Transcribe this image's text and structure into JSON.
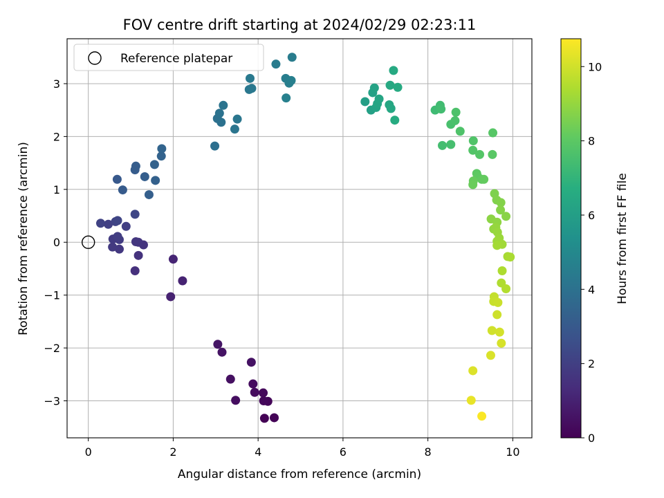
{
  "chart_data": {
    "type": "scatter",
    "title": "FOV centre drift starting at 2024/02/29 02:23:11",
    "xlabel": "Angular distance from reference (arcmin)",
    "ylabel": "Rotation from reference (arcmin)",
    "xlim": [
      -0.5,
      10.45
    ],
    "ylim": [
      -3.7,
      3.85
    ],
    "xticks": [
      0,
      2,
      4,
      6,
      8,
      10
    ],
    "yticks": [
      -3,
      -2,
      -1,
      0,
      1,
      2,
      3
    ],
    "xtick_labels": [
      "0",
      "2",
      "4",
      "6",
      "8",
      "10"
    ],
    "ytick_labels": [
      "−3",
      "−2",
      "−1",
      "0",
      "1",
      "2",
      "3"
    ],
    "grid": true,
    "legend": {
      "position": "top-left",
      "entries": [
        "Reference platepar"
      ]
    },
    "reference_point": {
      "x": 0,
      "y": 0
    },
    "colorbar": {
      "label": "Hours from first FF file",
      "colormap": "viridis",
      "range": [
        0,
        10.75
      ],
      "ticks": [
        0,
        2,
        4,
        6,
        8,
        10
      ],
      "tick_labels": [
        "0",
        "2",
        "4",
        "6",
        "8",
        "10"
      ]
    },
    "points": [
      {
        "x": 4.15,
        "y": -3.33,
        "h": 0.05
      },
      {
        "x": 4.38,
        "y": -3.32,
        "h": 0.1
      },
      {
        "x": 4.23,
        "y": -3.01,
        "h": 0.15
      },
      {
        "x": 4.13,
        "y": -3.0,
        "h": 0.2
      },
      {
        "x": 4.12,
        "y": -2.85,
        "h": 0.25
      },
      {
        "x": 3.92,
        "y": -2.84,
        "h": 0.3
      },
      {
        "x": 3.88,
        "y": -2.68,
        "h": 0.35
      },
      {
        "x": 3.47,
        "y": -2.99,
        "h": 0.4
      },
      {
        "x": 3.35,
        "y": -2.59,
        "h": 0.45
      },
      {
        "x": 3.84,
        "y": -2.27,
        "h": 0.5
      },
      {
        "x": 3.15,
        "y": -2.08,
        "h": 0.55
      },
      {
        "x": 3.05,
        "y": -1.93,
        "h": 0.6
      },
      {
        "x": 1.94,
        "y": -1.03,
        "h": 1.0
      },
      {
        "x": 2.22,
        "y": -0.73,
        "h": 1.05
      },
      {
        "x": 2.0,
        "y": -0.32,
        "h": 1.1
      },
      {
        "x": 1.1,
        "y": -0.54,
        "h": 1.5
      },
      {
        "x": 1.18,
        "y": -0.25,
        "h": 1.55
      },
      {
        "x": 1.3,
        "y": -0.05,
        "h": 1.6
      },
      {
        "x": 1.18,
        "y": 0.0,
        "h": 1.65
      },
      {
        "x": 1.12,
        "y": 0.01,
        "h": 1.7
      },
      {
        "x": 0.73,
        "y": -0.13,
        "h": 1.75
      },
      {
        "x": 0.57,
        "y": -0.09,
        "h": 1.8
      },
      {
        "x": 0.58,
        "y": 0.06,
        "h": 1.85
      },
      {
        "x": 0.73,
        "y": 0.05,
        "h": 1.9
      },
      {
        "x": 0.69,
        "y": 0.11,
        "h": 1.95
      },
      {
        "x": 0.89,
        "y": 0.3,
        "h": 2.0
      },
      {
        "x": 0.47,
        "y": 0.34,
        "h": 2.05
      },
      {
        "x": 0.29,
        "y": 0.36,
        "h": 2.1
      },
      {
        "x": 0.64,
        "y": 0.39,
        "h": 2.15
      },
      {
        "x": 0.69,
        "y": 0.41,
        "h": 2.2
      },
      {
        "x": 1.1,
        "y": 0.53,
        "h": 2.25
      },
      {
        "x": 0.68,
        "y": 1.19,
        "h": 3.0
      },
      {
        "x": 0.81,
        "y": 0.99,
        "h": 3.05
      },
      {
        "x": 1.1,
        "y": 1.37,
        "h": 3.1
      },
      {
        "x": 1.12,
        "y": 1.44,
        "h": 3.15
      },
      {
        "x": 1.33,
        "y": 1.24,
        "h": 3.2
      },
      {
        "x": 1.43,
        "y": 0.9,
        "h": 3.25
      },
      {
        "x": 1.58,
        "y": 1.17,
        "h": 3.3
      },
      {
        "x": 1.56,
        "y": 1.47,
        "h": 3.35
      },
      {
        "x": 1.72,
        "y": 1.63,
        "h": 3.4
      },
      {
        "x": 1.73,
        "y": 1.77,
        "h": 3.45
      },
      {
        "x": 2.98,
        "y": 1.82,
        "h": 3.9
      },
      {
        "x": 3.04,
        "y": 2.34,
        "h": 3.95
      },
      {
        "x": 3.13,
        "y": 2.27,
        "h": 4.0
      },
      {
        "x": 3.09,
        "y": 2.44,
        "h": 4.05
      },
      {
        "x": 3.18,
        "y": 2.59,
        "h": 4.1
      },
      {
        "x": 3.45,
        "y": 2.14,
        "h": 4.15
      },
      {
        "x": 3.51,
        "y": 2.33,
        "h": 4.2
      },
      {
        "x": 3.79,
        "y": 2.89,
        "h": 4.25
      },
      {
        "x": 3.85,
        "y": 2.91,
        "h": 4.3
      },
      {
        "x": 3.81,
        "y": 3.1,
        "h": 4.35
      },
      {
        "x": 4.42,
        "y": 3.37,
        "h": 4.4
      },
      {
        "x": 4.8,
        "y": 3.5,
        "h": 4.45
      },
      {
        "x": 4.65,
        "y": 3.1,
        "h": 4.5
      },
      {
        "x": 4.73,
        "y": 3.01,
        "h": 4.55
      },
      {
        "x": 4.78,
        "y": 3.06,
        "h": 4.6
      },
      {
        "x": 4.66,
        "y": 2.73,
        "h": 4.65
      },
      {
        "x": 6.52,
        "y": 2.66,
        "h": 6.0
      },
      {
        "x": 6.66,
        "y": 2.5,
        "h": 6.05
      },
      {
        "x": 6.7,
        "y": 2.83,
        "h": 6.1
      },
      {
        "x": 6.74,
        "y": 2.92,
        "h": 6.15
      },
      {
        "x": 6.78,
        "y": 2.55,
        "h": 6.2
      },
      {
        "x": 6.81,
        "y": 2.62,
        "h": 6.25
      },
      {
        "x": 6.85,
        "y": 2.71,
        "h": 6.3
      },
      {
        "x": 7.09,
        "y": 2.6,
        "h": 6.35
      },
      {
        "x": 7.13,
        "y": 2.53,
        "h": 6.4
      },
      {
        "x": 7.11,
        "y": 2.97,
        "h": 6.45
      },
      {
        "x": 7.19,
        "y": 3.25,
        "h": 6.5
      },
      {
        "x": 7.29,
        "y": 2.93,
        "h": 6.55
      },
      {
        "x": 7.22,
        "y": 2.31,
        "h": 6.6
      },
      {
        "x": 8.17,
        "y": 2.5,
        "h": 7.3
      },
      {
        "x": 8.29,
        "y": 2.59,
        "h": 7.35
      },
      {
        "x": 8.31,
        "y": 2.52,
        "h": 7.4
      },
      {
        "x": 8.34,
        "y": 1.83,
        "h": 7.45
      },
      {
        "x": 8.54,
        "y": 1.85,
        "h": 7.5
      },
      {
        "x": 8.54,
        "y": 2.23,
        "h": 7.55
      },
      {
        "x": 8.64,
        "y": 2.3,
        "h": 7.6
      },
      {
        "x": 8.66,
        "y": 2.46,
        "h": 7.65
      },
      {
        "x": 8.76,
        "y": 2.1,
        "h": 7.7
      },
      {
        "x": 9.07,
        "y": 1.92,
        "h": 7.75
      },
      {
        "x": 9.06,
        "y": 1.74,
        "h": 7.8
      },
      {
        "x": 9.22,
        "y": 1.66,
        "h": 7.85
      },
      {
        "x": 9.53,
        "y": 2.07,
        "h": 7.9
      },
      {
        "x": 9.52,
        "y": 1.66,
        "h": 7.95
      },
      {
        "x": 9.15,
        "y": 1.3,
        "h": 8.0
      },
      {
        "x": 9.17,
        "y": 1.25,
        "h": 8.05
      },
      {
        "x": 9.27,
        "y": 1.19,
        "h": 8.1
      },
      {
        "x": 9.32,
        "y": 1.19,
        "h": 8.15
      },
      {
        "x": 9.07,
        "y": 1.16,
        "h": 8.2
      },
      {
        "x": 9.06,
        "y": 1.09,
        "h": 8.25
      },
      {
        "x": 9.57,
        "y": 0.92,
        "h": 8.6
      },
      {
        "x": 9.62,
        "y": 0.8,
        "h": 8.65
      },
      {
        "x": 9.72,
        "y": 0.75,
        "h": 8.7
      },
      {
        "x": 9.71,
        "y": 0.61,
        "h": 8.75
      },
      {
        "x": 9.84,
        "y": 0.49,
        "h": 8.8
      },
      {
        "x": 9.49,
        "y": 0.44,
        "h": 8.85
      },
      {
        "x": 9.63,
        "y": 0.38,
        "h": 8.9
      },
      {
        "x": 9.55,
        "y": 0.25,
        "h": 8.95
      },
      {
        "x": 9.6,
        "y": 0.28,
        "h": 9.0
      },
      {
        "x": 9.64,
        "y": 0.19,
        "h": 9.05
      },
      {
        "x": 9.68,
        "y": 0.08,
        "h": 9.1
      },
      {
        "x": 9.63,
        "y": 0.02,
        "h": 9.15
      },
      {
        "x": 9.75,
        "y": -0.04,
        "h": 9.2
      },
      {
        "x": 9.63,
        "y": -0.06,
        "h": 9.25
      },
      {
        "x": 9.88,
        "y": -0.27,
        "h": 9.3
      },
      {
        "x": 9.94,
        "y": -0.28,
        "h": 9.35
      },
      {
        "x": 9.75,
        "y": -0.54,
        "h": 9.4
      },
      {
        "x": 9.73,
        "y": -0.77,
        "h": 9.45
      },
      {
        "x": 9.84,
        "y": -0.88,
        "h": 9.5
      },
      {
        "x": 9.56,
        "y": -1.03,
        "h": 9.8
      },
      {
        "x": 9.55,
        "y": -1.12,
        "h": 9.85
      },
      {
        "x": 9.65,
        "y": -1.14,
        "h": 9.9
      },
      {
        "x": 9.63,
        "y": -1.37,
        "h": 9.95
      },
      {
        "x": 9.51,
        "y": -1.67,
        "h": 10.0
      },
      {
        "x": 9.69,
        "y": -1.7,
        "h": 10.05
      },
      {
        "x": 9.73,
        "y": -1.91,
        "h": 10.1
      },
      {
        "x": 9.48,
        "y": -2.14,
        "h": 10.15
      },
      {
        "x": 9.06,
        "y": -2.43,
        "h": 10.2
      },
      {
        "x": 9.02,
        "y": -2.99,
        "h": 10.4
      },
      {
        "x": 9.27,
        "y": -3.29,
        "h": 10.7
      }
    ]
  }
}
